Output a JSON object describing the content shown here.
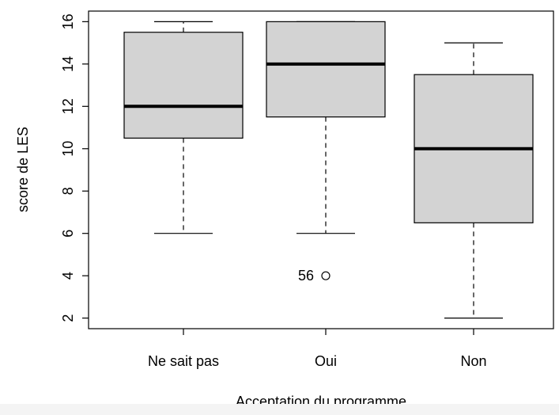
{
  "chart_data": {
    "type": "boxplot",
    "xlabel": "Acceptation du programme",
    "ylabel": "score de LES",
    "ylim": [
      1.5,
      16.5
    ],
    "yticks": [
      2,
      4,
      6,
      8,
      10,
      12,
      14,
      16
    ],
    "categories": [
      "Ne sait pas",
      "Oui",
      "Non"
    ],
    "boxes": [
      {
        "category": "Ne sait pas",
        "whisker_low": 6,
        "q1": 10.5,
        "median": 12,
        "q3": 15.5,
        "whisker_high": 16,
        "outliers": []
      },
      {
        "category": "Oui",
        "whisker_low": 6,
        "q1": 11.5,
        "median": 14,
        "q3": 16,
        "whisker_high": 16,
        "outliers": [
          {
            "value": 4,
            "label": "56"
          }
        ]
      },
      {
        "category": "Non",
        "whisker_low": 2,
        "q1": 6.5,
        "median": 10,
        "q3": 13.5,
        "whisker_high": 15,
        "outliers": []
      }
    ],
    "box_fill": "#d3d3d3",
    "grid": false
  }
}
